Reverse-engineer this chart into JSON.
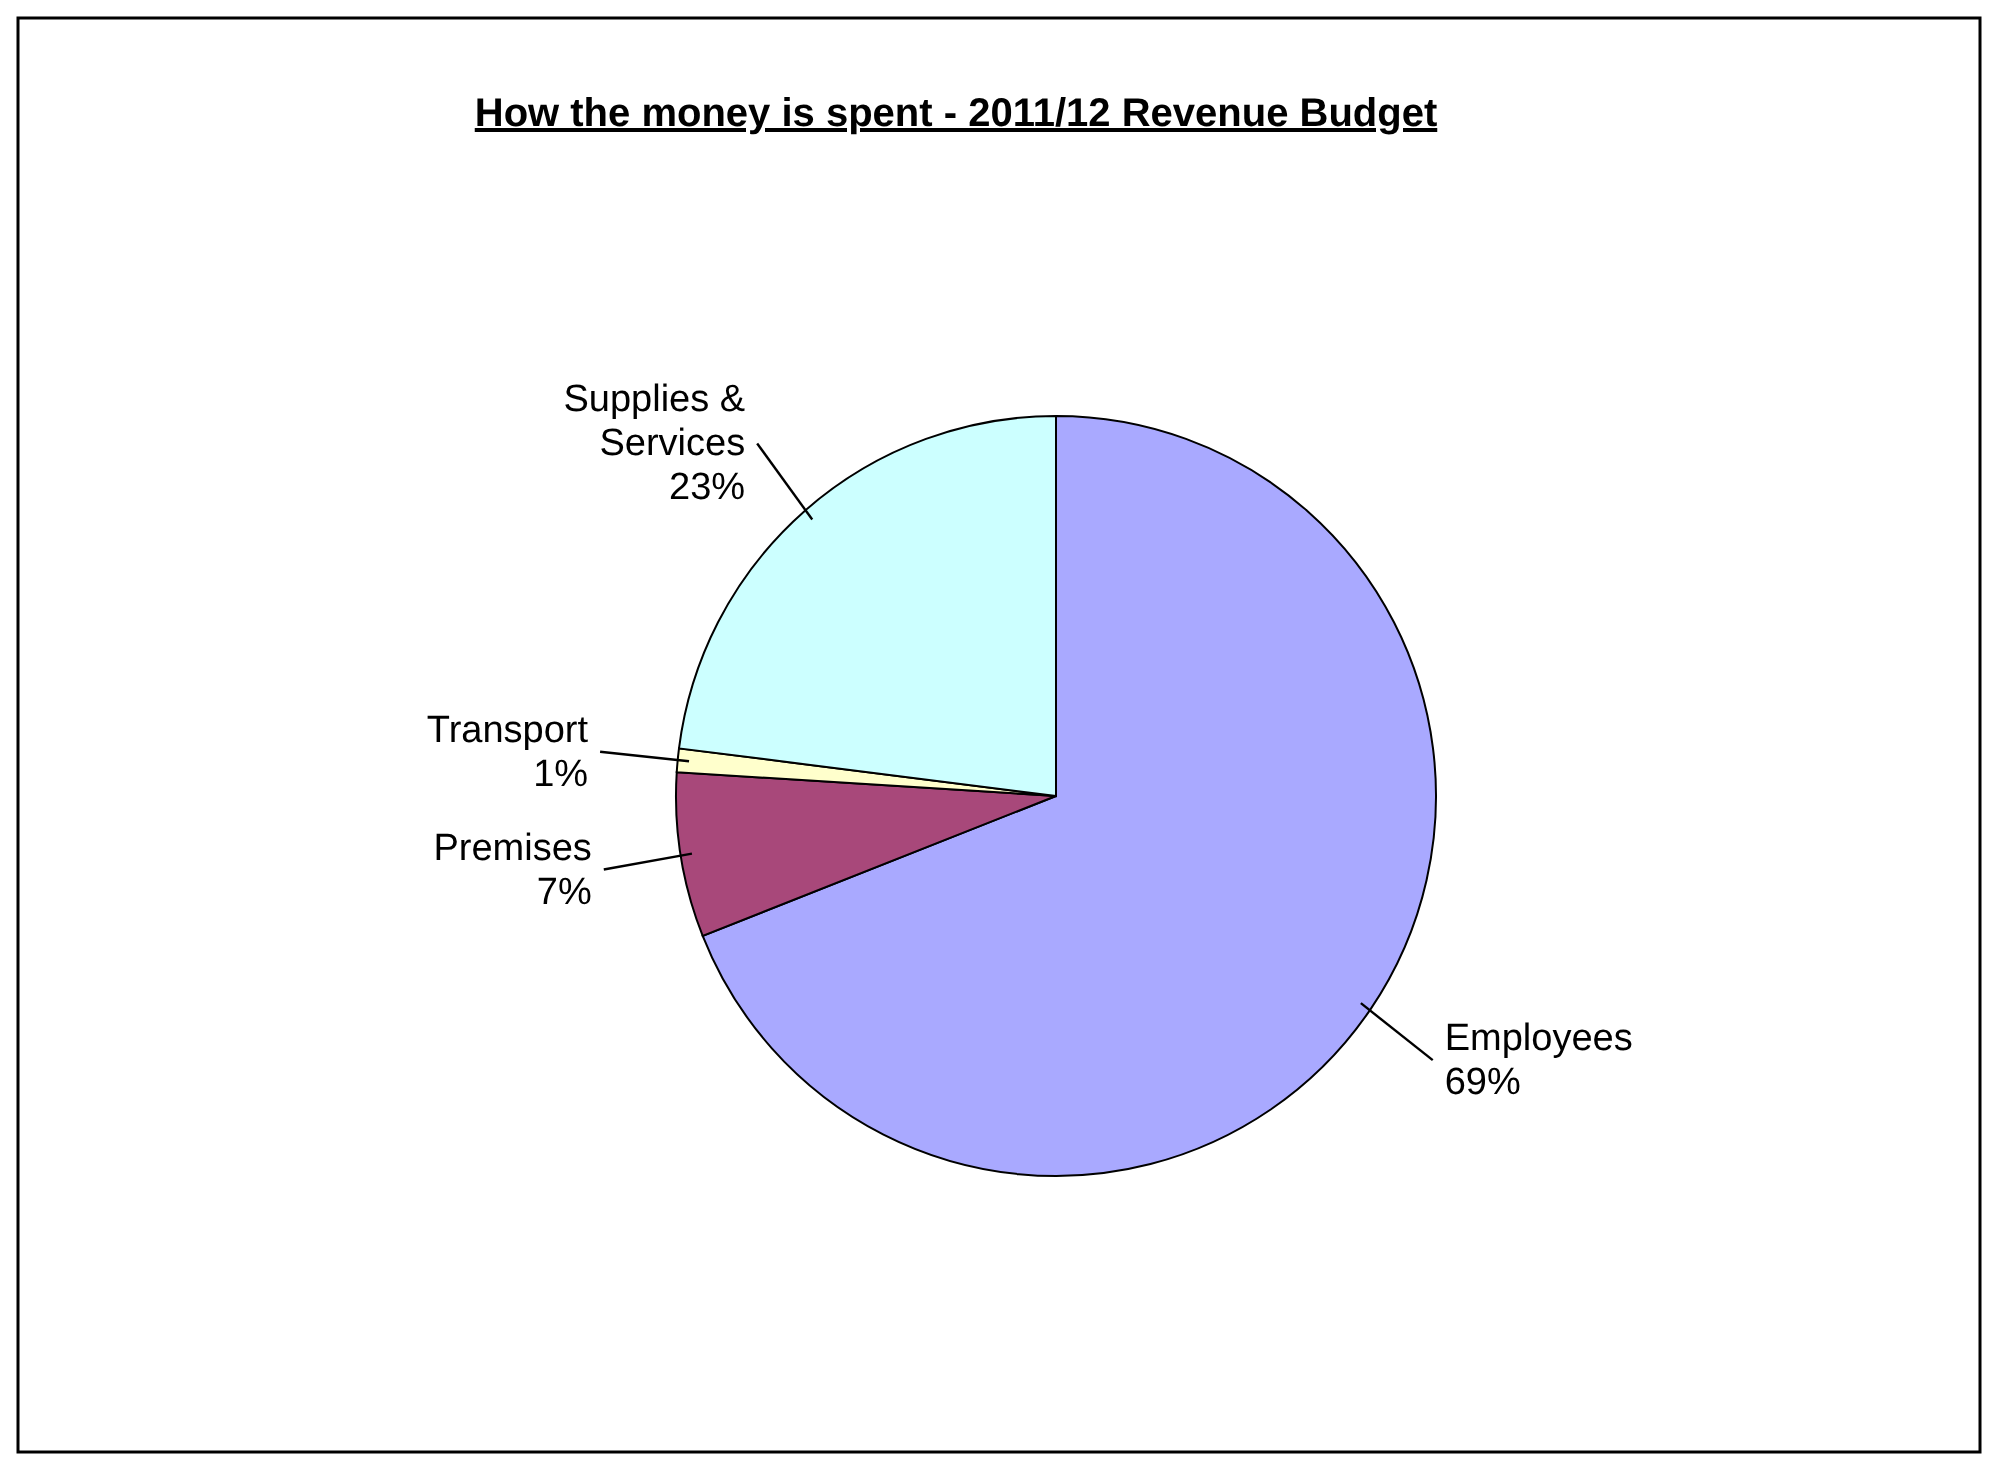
{
  "chart_data": {
    "type": "pie",
    "title": "How the money is spent - 2011/12 Revenue Budget",
    "categories": [
      "Employees",
      "Premises",
      "Transport",
      "Supplies & Services"
    ],
    "values": [
      69,
      7,
      1,
      23
    ],
    "value_labels": [
      "69%",
      "7%",
      "1%",
      "23%"
    ],
    "colors": [
      "#a9a9ff",
      "#a8487a",
      "#ffffcc",
      "#ccffff"
    ]
  }
}
